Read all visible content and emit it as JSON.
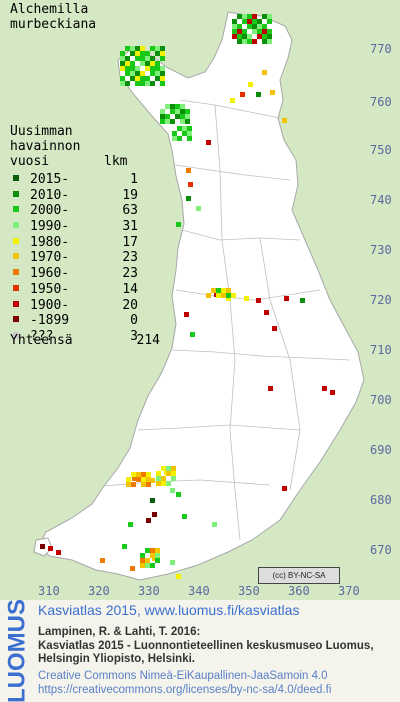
{
  "species": {
    "line1": "Alchemilla",
    "line2": "murbeckiana"
  },
  "legend": {
    "title_line1": "Uusimman",
    "title_line2": "havainnon",
    "title_line3": "vuosi",
    "count_header": "lkm",
    "rows": [
      {
        "label": "2015-",
        "count": "1",
        "color": "#0a5e0a"
      },
      {
        "label": "2010-",
        "count": "19",
        "color": "#0b8f0b"
      },
      {
        "label": "2000-",
        "count": "63",
        "color": "#18c818"
      },
      {
        "label": "1990-",
        "count": "31",
        "color": "#7ff07a"
      },
      {
        "label": "1980-",
        "count": "17",
        "color": "#f2f200"
      },
      {
        "label": "1970-",
        "count": "23",
        "color": "#f5c400"
      },
      {
        "label": "1960-",
        "count": "23",
        "color": "#f07a00"
      },
      {
        "label": "1950-",
        "count": "14",
        "color": "#e03000"
      },
      {
        "label": "1900-",
        "count": "20",
        "color": "#c00000"
      },
      {
        "label": "-1899",
        "count": "0",
        "color": "#7a0000"
      },
      {
        "label": "???",
        "count": "3",
        "color": "#c8c8c8"
      }
    ],
    "total_label": "Yhteensä",
    "total_count": "214"
  },
  "axes": {
    "y_ticks": [
      "770",
      "760",
      "750",
      "740",
      "730",
      "720",
      "710",
      "700",
      "690",
      "680",
      "670"
    ],
    "x_ticks": [
      "310",
      "320",
      "330",
      "340",
      "350",
      "360",
      "370"
    ]
  },
  "license_badge": "(cc) BY-NC-SA",
  "footer": {
    "logo": "LUOMUS",
    "link_text": "Kasviatlas 2015, www.luomus.fi/kasviatlas",
    "citation_line1": "Lampinen, R. & Lahti, T. 2016:",
    "citation_line2": "Kasviatlas 2015 - Luonnontieteellinen keskusmuseo Luomus,",
    "citation_line3": "Helsingin Yliopisto, Helsinki.",
    "license_line1": "Creative Commons Nimeä-EiKaupallinen-JaaSamoin 4.0",
    "license_line2": "https://creativecommons.org/licenses/by-nc-sa/4.0/deed.fi"
  },
  "colors": {
    "land": "#ffffff",
    "sea": "#d4e8c4",
    "borders": "#b4b4b4"
  }
}
